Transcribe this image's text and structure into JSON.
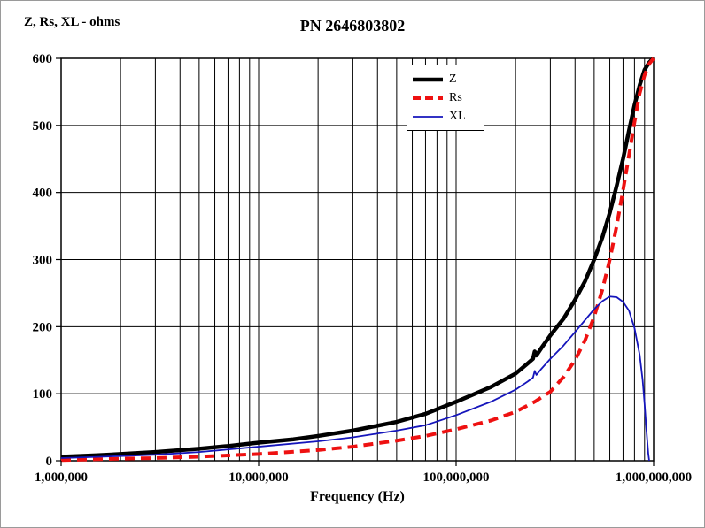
{
  "chart_data": {
    "type": "line",
    "title": "PN 2646803802",
    "ylabel": "Z, Rs, XL - ohms",
    "xlabel": "Frequency (Hz)",
    "x_scale": "log",
    "xlim": [
      1000000,
      1000000000
    ],
    "ylim": [
      0,
      600
    ],
    "x_ticks": [
      1000000,
      10000000,
      100000000,
      1000000000
    ],
    "x_tick_labels": [
      "1,000,000",
      "10,000,000",
      "100,000,000",
      "1,000,000,000"
    ],
    "y_ticks": [
      0,
      100,
      200,
      300,
      400,
      500,
      600
    ],
    "grid": "log-minor-vertical and major-horizontal, black",
    "legend_position": "upper-center",
    "series": [
      {
        "name": "Z",
        "color": "#000000",
        "width": 4.5,
        "dash": "solid",
        "x": [
          1000000,
          1500000,
          2000000,
          3000000,
          5000000,
          7000000,
          10000000,
          15000000,
          20000000,
          30000000,
          50000000,
          70000000,
          100000000,
          150000000,
          200000000,
          230000000,
          245000000,
          250000000,
          255000000,
          270000000,
          300000000,
          350000000,
          400000000,
          450000000,
          500000000,
          550000000,
          600000000,
          650000000,
          700000000,
          750000000,
          800000000,
          850000000,
          900000000,
          950000000,
          980000000,
          1000000000
        ],
        "y": [
          6,
          8,
          10,
          13,
          18,
          22,
          27,
          32,
          37,
          45,
          58,
          70,
          88,
          110,
          130,
          145,
          152,
          163,
          157,
          168,
          187,
          212,
          240,
          268,
          300,
          333,
          370,
          410,
          450,
          492,
          530,
          560,
          583,
          594,
          598,
          600
        ]
      },
      {
        "name": "Rs",
        "color": "#ee1111",
        "width": 4,
        "dash": "dashed",
        "x": [
          1000000,
          2000000,
          3000000,
          5000000,
          10000000,
          20000000,
          30000000,
          50000000,
          70000000,
          100000000,
          150000000,
          200000000,
          250000000,
          300000000,
          350000000,
          400000000,
          450000000,
          500000000,
          550000000,
          600000000,
          650000000,
          700000000,
          750000000,
          800000000,
          850000000,
          900000000,
          950000000,
          1000000000
        ],
        "y": [
          1,
          3,
          4,
          6,
          10,
          16,
          21,
          30,
          37,
          47,
          60,
          73,
          88,
          103,
          125,
          150,
          180,
          215,
          255,
          300,
          350,
          403,
          455,
          505,
          548,
          575,
          592,
          600
        ]
      },
      {
        "name": "XL",
        "color": "#1515bb",
        "width": 1.8,
        "dash": "solid",
        "x": [
          1000000,
          2000000,
          3000000,
          5000000,
          10000000,
          20000000,
          30000000,
          50000000,
          70000000,
          100000000,
          150000000,
          200000000,
          230000000,
          245000000,
          250000000,
          255000000,
          270000000,
          300000000,
          350000000,
          400000000,
          450000000,
          500000000,
          550000000,
          600000000,
          650000000,
          700000000,
          750000000,
          800000000,
          850000000,
          880000000,
          900000000,
          920000000,
          940000000,
          950000000
        ],
        "y": [
          4,
          7,
          9,
          13,
          21,
          29,
          35,
          45,
          53,
          68,
          88,
          106,
          118,
          124,
          134,
          128,
          137,
          152,
          172,
          192,
          210,
          226,
          238,
          245,
          244,
          237,
          224,
          198,
          158,
          120,
          85,
          45,
          10,
          0
        ]
      }
    ]
  }
}
